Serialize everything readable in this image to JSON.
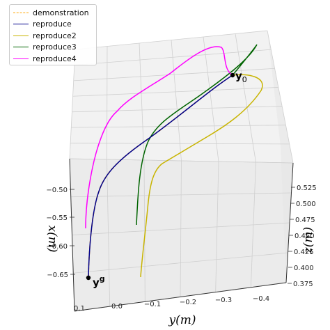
{
  "chart_data": {
    "type": "line",
    "projection": "3d",
    "title": "",
    "xlabel": "x(m)",
    "ylabel": "y(m)",
    "zlabel": "z(m)",
    "grid": true,
    "legend_position": "top-left",
    "x_ticks": [
      "−0.50",
      "−0.55",
      "−0.60",
      "−0.65"
    ],
    "y_ticks": [
      "0.1",
      "0.0",
      "−0.1",
      "−0.2",
      "−0.3",
      "−0.4"
    ],
    "z_ticks": [
      "0.525",
      "0.500",
      "0.475",
      "0.450",
      "0.425",
      "0.400",
      "0.375"
    ],
    "annotations": [
      {
        "name": "start",
        "label": "y",
        "sub": "0"
      },
      {
        "name": "goal",
        "label": "y",
        "sup": "g"
      }
    ],
    "series": [
      {
        "name": "demonstration",
        "color": "#ffa500",
        "style": "dashed"
      },
      {
        "name": "reproduce",
        "color": "#00008b",
        "style": "solid"
      },
      {
        "name": "reproduce2",
        "color": "#c8b400",
        "style": "solid"
      },
      {
        "name": "reproduce3",
        "color": "#006400",
        "style": "solid"
      },
      {
        "name": "reproduce4",
        "color": "#ff00ff",
        "style": "solid"
      }
    ]
  }
}
